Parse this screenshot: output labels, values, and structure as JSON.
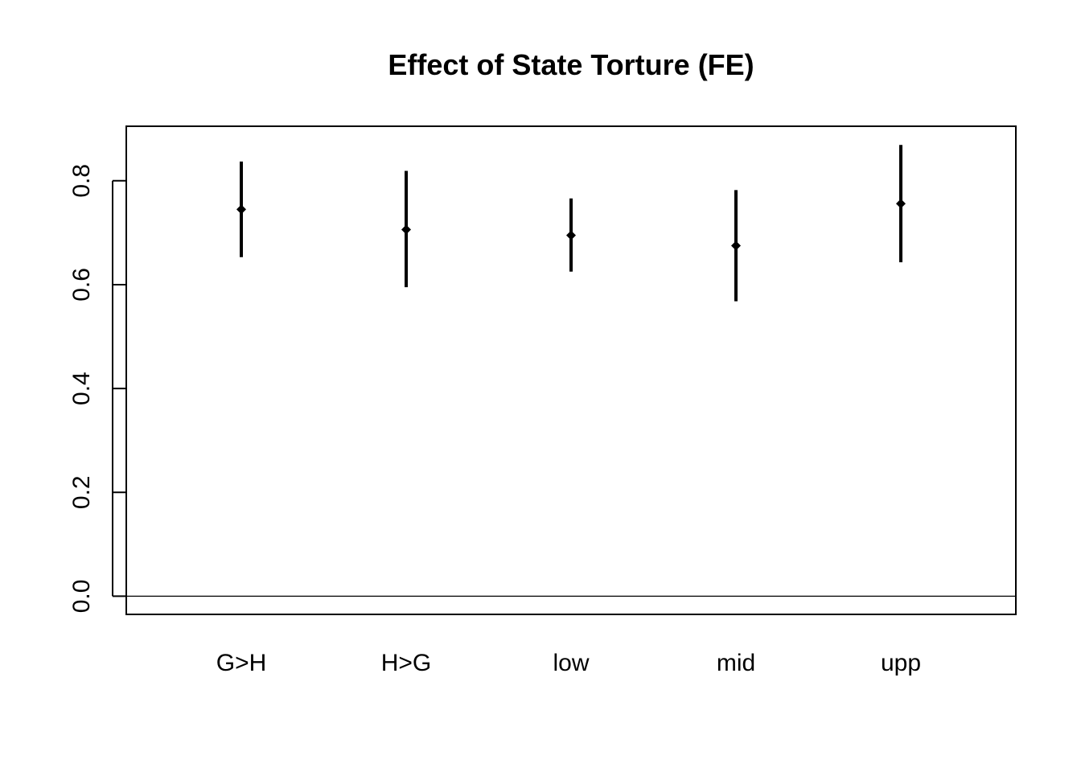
{
  "chart_data": {
    "type": "errorbar",
    "title": "Effect of State Torture (FE)",
    "xlabel": "",
    "ylabel": "",
    "categories": [
      "G>H",
      "H>G",
      "low",
      "mid",
      "upp"
    ],
    "estimate": [
      0.745,
      0.706,
      0.695,
      0.675,
      0.756
    ],
    "lower": [
      0.653,
      0.595,
      0.625,
      0.568,
      0.643
    ],
    "upper": [
      0.837,
      0.819,
      0.766,
      0.782,
      0.869
    ],
    "ylim": [
      -0.035,
      0.905
    ],
    "yticks": [
      0.0,
      0.2,
      0.4,
      0.6,
      0.8
    ],
    "ytick_labels": [
      "0.0",
      "0.2",
      "0.4",
      "0.6",
      "0.8"
    ],
    "reference_line_y": 0.0,
    "grid": false,
    "legend": "none",
    "colors": {
      "line": "#000000",
      "background": "#ffffff"
    }
  }
}
